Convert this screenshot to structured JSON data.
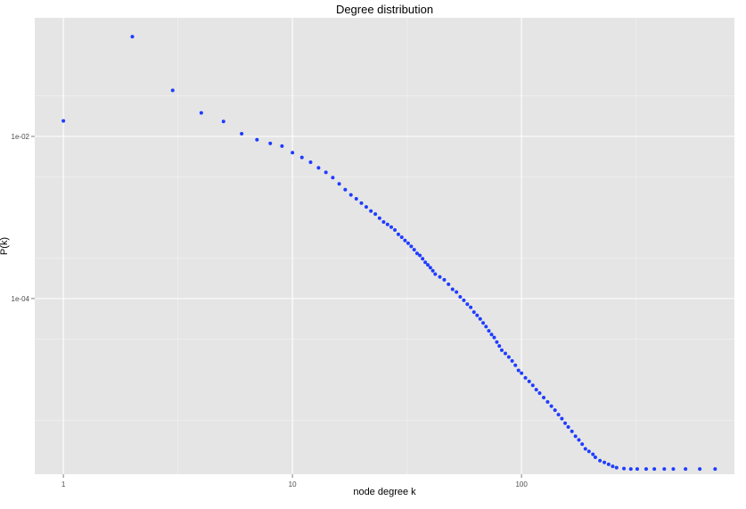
{
  "chart_data": {
    "type": "scatter",
    "title": "Degree distribution",
    "xlabel": "node degree k",
    "ylabel": "P(k)",
    "x_scale": "log10",
    "y_scale": "log10",
    "xlim": [
      0.75,
      850
    ],
    "ylim": [
      6.8e-07,
      0.29
    ],
    "x_ticks": [
      {
        "value": 1,
        "label": "1"
      },
      {
        "value": 10,
        "label": "10"
      },
      {
        "value": 100,
        "label": "100"
      }
    ],
    "y_ticks": [
      {
        "value": 0.01,
        "label": "1e-02"
      },
      {
        "value": 0.0001,
        "label": "1e-04"
      }
    ],
    "grid": true,
    "legend": "none",
    "colors": {
      "panel": "#e5e5e5",
      "grid": "#ffffff",
      "point": "#1f3cff"
    },
    "series": [
      {
        "points": [
          [
            1,
            0.0155
          ],
          [
            2,
            0.17
          ],
          [
            3,
            0.037
          ],
          [
            4,
            0.0195
          ],
          [
            5,
            0.0153
          ],
          [
            6,
            0.0108
          ],
          [
            7,
            0.0091
          ],
          [
            8,
            0.0082
          ],
          [
            9,
            0.0076
          ],
          [
            10,
            0.0063
          ],
          [
            11,
            0.0055
          ],
          [
            12,
            0.0048
          ],
          [
            13,
            0.0041
          ],
          [
            14,
            0.0036
          ],
          [
            15,
            0.0031
          ],
          [
            16,
            0.0026
          ],
          [
            17,
            0.0022
          ],
          [
            18,
            0.0019
          ],
          [
            19,
            0.0017
          ],
          [
            20,
            0.0015
          ],
          [
            21,
            0.00135
          ],
          [
            22,
            0.0012
          ],
          [
            23,
            0.0011
          ],
          [
            24,
            0.00098
          ],
          [
            25,
            0.00088
          ],
          [
            26,
            0.00082
          ],
          [
            27,
            0.00076
          ],
          [
            28,
            0.0007
          ],
          [
            29,
            0.00062
          ],
          [
            30,
            0.00057
          ],
          [
            31,
            0.00052
          ],
          [
            32,
            0.00048
          ],
          [
            33,
            0.00044
          ],
          [
            34,
            0.0004
          ],
          [
            35,
            0.00036
          ],
          [
            36,
            0.00034
          ],
          [
            37,
            0.00031
          ],
          [
            38,
            0.00028
          ],
          [
            39,
            0.00026
          ],
          [
            40,
            0.00024
          ],
          [
            41,
            0.00022
          ],
          [
            42,
            0.0002
          ],
          [
            44,
            0.000185
          ],
          [
            46,
            0.00017
          ],
          [
            48,
            0.00015
          ],
          [
            50,
            0.00013
          ],
          [
            52,
            0.00012
          ],
          [
            54,
            0.000105
          ],
          [
            56,
            9.5e-05
          ],
          [
            58,
            8.5e-05
          ],
          [
            60,
            7.8e-05
          ],
          [
            62,
            6.8e-05
          ],
          [
            64,
            6.2e-05
          ],
          [
            66,
            5.6e-05
          ],
          [
            68,
            5e-05
          ],
          [
            70,
            4.5e-05
          ],
          [
            72,
            4e-05
          ],
          [
            74,
            3.6e-05
          ],
          [
            76,
            3.3e-05
          ],
          [
            78,
            2.9e-05
          ],
          [
            80,
            2.6e-05
          ],
          [
            82,
            2.3e-05
          ],
          [
            85,
            2.1e-05
          ],
          [
            88,
            1.9e-05
          ],
          [
            91,
            1.7e-05
          ],
          [
            94,
            1.5e-05
          ],
          [
            97,
            1.3e-05
          ],
          [
            100,
            1.2e-05
          ],
          [
            104,
            1.05e-05
          ],
          [
            108,
            9.5e-06
          ],
          [
            112,
            8.5e-06
          ],
          [
            116,
            7.5e-06
          ],
          [
            120,
            6.8e-06
          ],
          [
            125,
            6e-06
          ],
          [
            130,
            5.3e-06
          ],
          [
            135,
            4.7e-06
          ],
          [
            140,
            4.2e-06
          ],
          [
            145,
            3.7e-06
          ],
          [
            150,
            3.3e-06
          ],
          [
            155,
            2.9e-06
          ],
          [
            160,
            2.6e-06
          ],
          [
            166,
            2.3e-06
          ],
          [
            172,
            2e-06
          ],
          [
            178,
            1.8e-06
          ],
          [
            184,
            1.6e-06
          ],
          [
            190,
            1.4e-06
          ],
          [
            197,
            1.3e-06
          ],
          [
            205,
            1.2e-06
          ],
          [
            210,
            1.1e-06
          ],
          [
            220,
            1e-06
          ],
          [
            230,
            9.5e-07
          ],
          [
            240,
            9e-07
          ],
          [
            250,
            8.5e-07
          ],
          [
            260,
            8.2e-07
          ],
          [
            280,
            8e-07
          ],
          [
            300,
            7.9e-07
          ],
          [
            320,
            7.9e-07
          ],
          [
            350,
            7.9e-07
          ],
          [
            380,
            7.9e-07
          ],
          [
            420,
            7.9e-07
          ],
          [
            460,
            7.9e-07
          ],
          [
            520,
            7.9e-07
          ],
          [
            600,
            7.9e-07
          ],
          [
            700,
            7.9e-07
          ]
        ]
      }
    ]
  }
}
